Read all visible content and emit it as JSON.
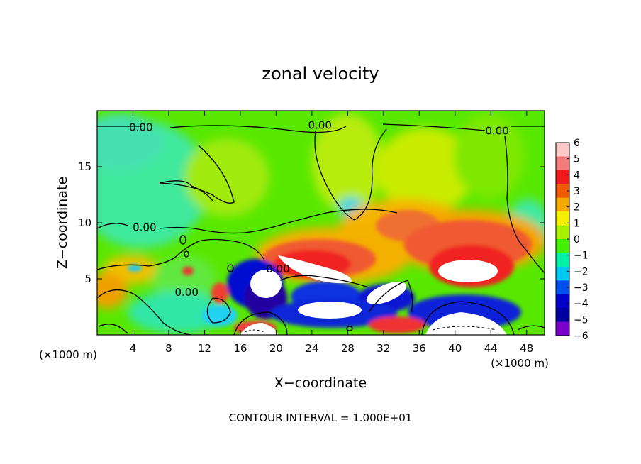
{
  "chart_data": {
    "type": "heatmap",
    "title": "zonal velocity",
    "xlabel": "X−coordinate",
    "ylabel": "Z−coordinate",
    "x_unit_left": "(×1000 m)",
    "x_unit_right": "(×1000 m)",
    "footer": "CONTOUR INTERVAL = 1.000E+01",
    "xlim": [
      0,
      50
    ],
    "ylim": [
      0,
      20
    ],
    "x_ticks": [
      4,
      8,
      12,
      16,
      20,
      24,
      28,
      32,
      36,
      40,
      44,
      48
    ],
    "y_ticks": [
      5,
      10,
      15
    ],
    "colorbar": {
      "ticks": [
        6,
        5,
        4,
        3,
        2,
        1,
        0,
        -1,
        -2,
        -3,
        -4,
        -5,
        -6
      ],
      "tick_labels": [
        "6",
        "5",
        "4",
        "3",
        "2",
        "1",
        "0",
        "−1",
        "−2",
        "−3",
        "−4",
        "−5",
        "−6"
      ],
      "colors": [
        "#fcc8c8",
        "#f47c7c",
        "#f01c1c",
        "#f05a00",
        "#f4a800",
        "#f4f000",
        "#a8f000",
        "#40f000",
        "#00f0a8",
        "#00c8f0",
        "#0050f0",
        "#0000c8",
        "#0000a0",
        "#7800c8"
      ]
    },
    "contour_labels": [
      {
        "text": "0.00",
        "x": 4.9,
        "y": 18.5
      },
      {
        "text": "0.00",
        "x": 24.9,
        "y": 18.7
      },
      {
        "text": "0.00",
        "x": 44.7,
        "y": 18.2
      },
      {
        "text": "0.00",
        "x": 5.3,
        "y": 9.6
      },
      {
        "text": "0.00",
        "x": 20.2,
        "y": 5.9
      },
      {
        "text": "0.00",
        "x": 10.0,
        "y": 3.8
      }
    ]
  }
}
